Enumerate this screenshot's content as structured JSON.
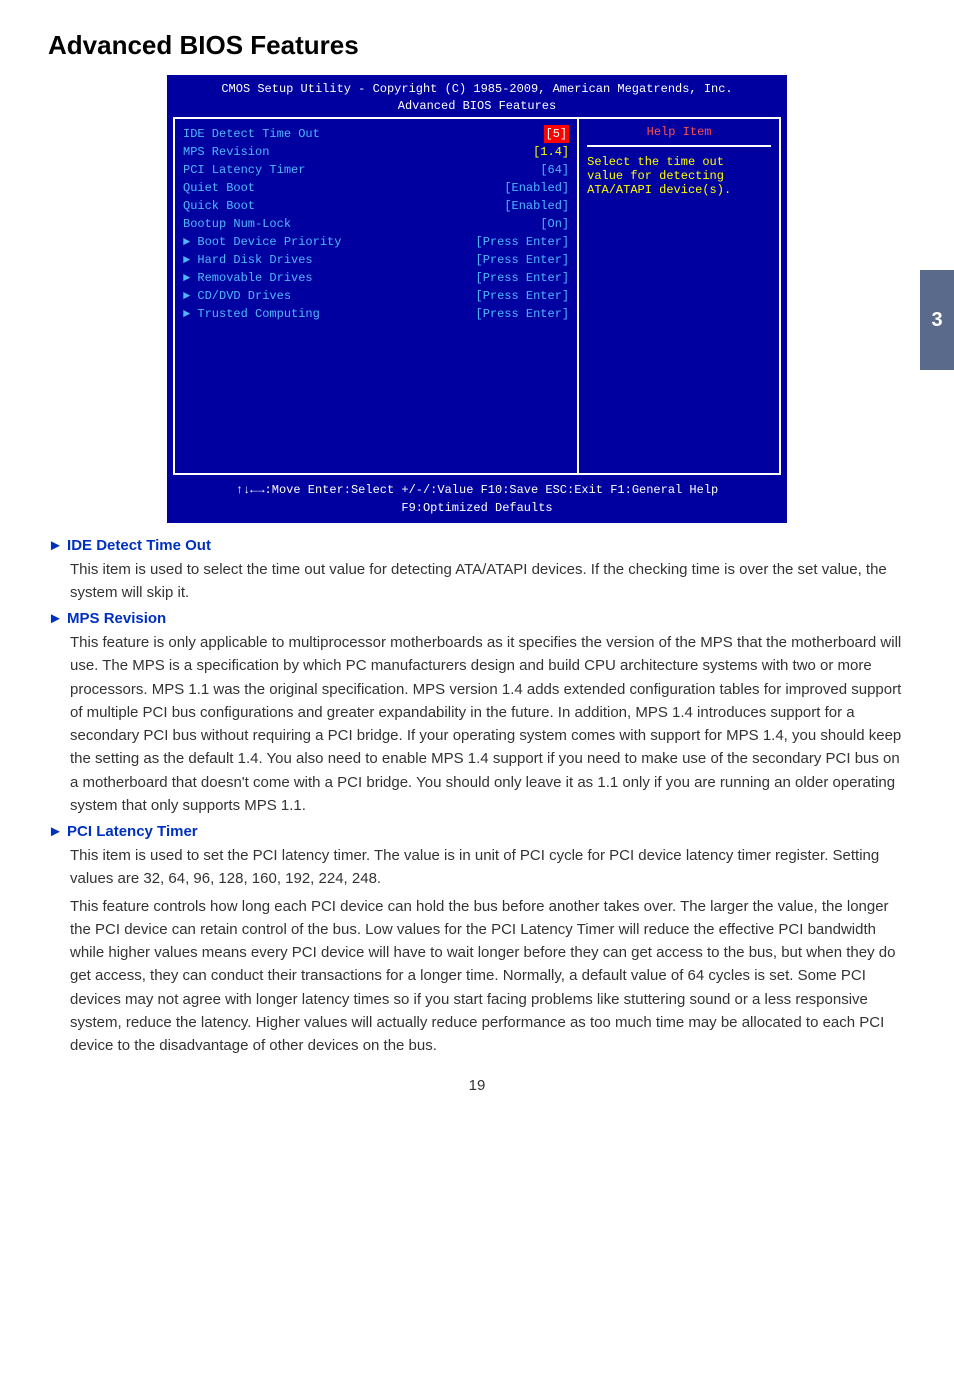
{
  "page_title": "Advanced BIOS Features",
  "side_tab": "3",
  "bios": {
    "header_line1": "CMOS Setup Utility - Copyright (C) 1985-2009, American Megatrends, Inc.",
    "header_line2": "Advanced BIOS Features",
    "rows": [
      {
        "label": "IDE Detect Time Out",
        "value": "[5]",
        "highlight": true,
        "arrow": false
      },
      {
        "label": "MPS Revision",
        "value": "[1.4]",
        "yellow": true,
        "arrow": false
      },
      {
        "label": "PCI Latency Timer",
        "value": "[64]",
        "arrow": false
      },
      {
        "label": "Quiet Boot",
        "value": "[Enabled]",
        "arrow": false
      },
      {
        "label": "Quick Boot",
        "value": "[Enabled]",
        "arrow": false
      },
      {
        "label": "Bootup Num-Lock",
        "value": "[On]",
        "arrow": false
      },
      {
        "label": "Boot Device Priority",
        "value": "[Press Enter]",
        "arrow": true
      },
      {
        "label": "Hard Disk Drives",
        "value": "[Press Enter]",
        "arrow": true
      },
      {
        "label": "Removable Drives",
        "value": "[Press Enter]",
        "arrow": true
      },
      {
        "label": "CD/DVD Drives",
        "value": "[Press Enter]",
        "arrow": true
      },
      {
        "label": "Trusted Computing",
        "value": "[Press Enter]",
        "arrow": true
      }
    ],
    "help_title": "Help Item",
    "help_line1": "Select the time out",
    "help_line2": "value for detecting",
    "help_line3": "ATA/ATAPI device(s).",
    "footer_line1": "↑↓←→:Move   Enter:Select     +/-/:Value    F10:Save    ESC:Exit    F1:General Help",
    "footer_line2": "F9:Optimized Defaults"
  },
  "sections": [
    {
      "heading": "IDE Detect Time Out",
      "paragraphs": [
        "This item is used to select the time out value for detecting ATA/ATAPI devices. If the checking time is over the set value, the system will skip it."
      ]
    },
    {
      "heading": "MPS Revision",
      "paragraphs": [
        "This feature is only applicable to multiprocessor motherboards as it specifies the version of the MPS that the motherboard will use. The MPS is a specification by which PC manufacturers design and build CPU architecture systems with two or more processors. MPS 1.1 was the original specification. MPS version 1.4 adds extended configuration tables for improved support of multiple PCI bus configurations and greater expandability in the future. In addition, MPS 1.4 introduces support for a secondary PCI bus without requiring a PCI bridge. If your operating system comes with support for MPS 1.4, you should keep the setting as the default 1.4. You also need to enable MPS 1.4 support if you need to make use of the secondary PCI bus on a motherboard that doesn't come with a PCI bridge. You should only leave it as 1.1 only if you are running an older operating system that only supports MPS 1.1."
      ]
    },
    {
      "heading": "PCI Latency Timer",
      "paragraphs": [
        "This item is used to set the PCI latency timer. The value is in unit of PCI cycle for PCI device latency timer register. Setting values are 32, 64, 96, 128, 160, 192, 224, 248.",
        "This feature controls how long each PCI device can hold the bus before another takes over. The larger the value, the longer the PCI device can retain control of the bus. Low values for the PCI Latency Timer will reduce the effective PCI bandwidth while higher values means every PCI device will have to wait longer before they can get access to the bus, but when they do get access, they can conduct their transactions for a longer time. Normally, a default value of 64 cycles is set. Some PCI devices may not agree with longer latency times so if you start facing problems like stuttering sound or a less responsive system, reduce the latency. Higher values will actually reduce performance as too much time may be allocated to each PCI device to the disadvantage of other devices on the bus."
      ]
    }
  ],
  "page_number": "19"
}
